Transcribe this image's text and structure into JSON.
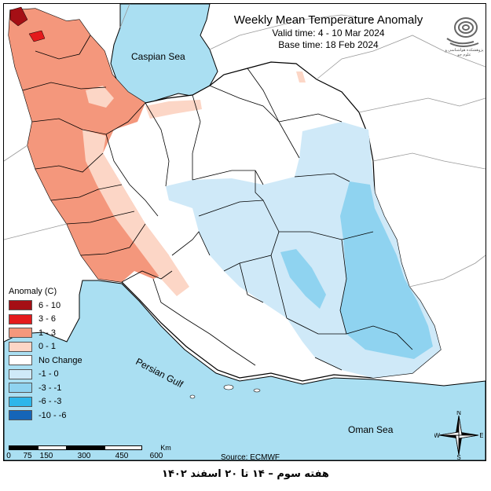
{
  "title": {
    "main": "Weekly Mean Temperature Anomaly",
    "valid_time": "Valid time: 4 - 10 Mar 2024",
    "base_time": "Base time: 18 Feb 2024"
  },
  "legend": {
    "title": "Anomaly (C)",
    "items": [
      {
        "label": "6 - 10",
        "color": "#a50f15"
      },
      {
        "label": "3 - 6",
        "color": "#e41a1c"
      },
      {
        "label": "1 - 3",
        "color": "#f4977c"
      },
      {
        "label": "0 - 1",
        "color": "#fcd6c6"
      },
      {
        "label": "No Change",
        "color": "#ffffff"
      },
      {
        "label": "-1 - 0",
        "color": "#cfe9f8"
      },
      {
        "label": "-3 - -1",
        "color": "#8fd3f0"
      },
      {
        "label": "-6 - -3",
        "color": "#2db6ea"
      },
      {
        "label": "-10 - -6",
        "color": "#1565b8"
      }
    ]
  },
  "labels": {
    "caspian": "Caspian Sea",
    "persian_gulf": "Persian Gulf",
    "oman_sea": "Oman Sea"
  },
  "scale": {
    "ticks": [
      "0",
      "75",
      "150",
      "300",
      "450",
      "600"
    ],
    "unit": "Km"
  },
  "source": "Source: ECMWF",
  "compass": {
    "n": "N",
    "s": "S",
    "e": "E",
    "w": "W"
  },
  "logo": {
    "text": "پژوهشکده هواشناسی و علوم جو",
    "icon": "swirl-logo-icon"
  },
  "footer": "هفته سوم – ۱۴ تا ۲۰ اسفند ۱۴۰۲",
  "colors": {
    "sea": "#aadff2",
    "land_outside": "#ffffff",
    "border": "#000000"
  }
}
